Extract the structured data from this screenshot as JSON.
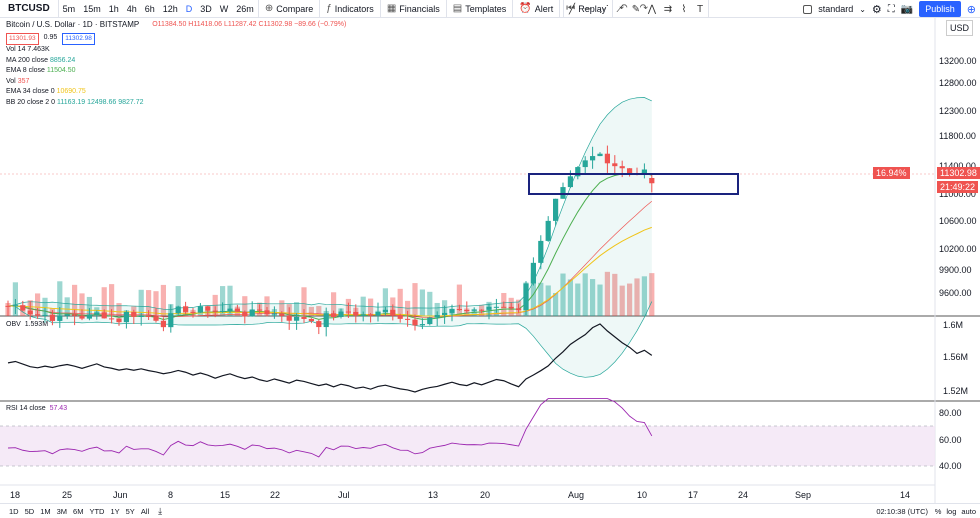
{
  "toolbar": {
    "symbol": "BTCUSD",
    "timeframes": [
      "5m",
      "15m",
      "1h",
      "4h",
      "6h",
      "12h",
      "D",
      "3D",
      "W",
      "26m"
    ],
    "active_timeframe": "D",
    "compare_label": "Compare",
    "indicators_label": "Indicators",
    "financials_label": "Financials",
    "templates_label": "Templates",
    "alert_label": "Alert",
    "replay_label": "Replay",
    "layout_label": "standard",
    "publish_label": "Publish"
  },
  "legend": {
    "title": "Bitcoin / U.S. Dollar · 1D · BITSTAMP",
    "ohlc": "O11384.50 H11418.06 L11287.42 C11302.98 −89.66 (−0.79%)",
    "bid": "11301.93",
    "spread": "0.95",
    "ask": "11302.98",
    "rows": [
      {
        "name": "Vol 14",
        "value": "7.463K",
        "color": "#131722"
      },
      {
        "name": "MA 200 close",
        "value": "8856.24",
        "color": "#26a69a"
      },
      {
        "name": "EMA 8 close",
        "value": "11504.50",
        "color": "#4caf50"
      },
      {
        "name": "Vol",
        "value": "357",
        "color": "#ef5350"
      },
      {
        "name": "EMA 34 close 0",
        "value": "10690.75",
        "color": "#f0c419"
      },
      {
        "name": "BB 20 close 2 0",
        "value": "11163.19  12498.66  9827.72",
        "color": "#26a69a"
      }
    ]
  },
  "price_axis": {
    "currency": "USD",
    "ticks": [
      "13200.00",
      "12800.00",
      "12300.00",
      "11800.00",
      "11400.00",
      "11000.00",
      "10600.00",
      "10200.00",
      "9900.00",
      "9600.00"
    ],
    "last_price": "11302.98",
    "countdown": "21:49:22",
    "pct_label": "16.94%"
  },
  "obv": {
    "label": "OBV",
    "value": "1.593M",
    "ticks": [
      "1.6M",
      "1.56M",
      "1.52M"
    ]
  },
  "rsi": {
    "label": "RSI 14 close",
    "value": "57.43",
    "ticks": [
      "80.00",
      "60.00",
      "40.00"
    ]
  },
  "time_axis": [
    "18",
    "25",
    "Jun",
    "8",
    "15",
    "22",
    "Jul",
    "13",
    "20",
    "Aug",
    "10",
    "17",
    "24",
    "Sep",
    "14"
  ],
  "bottom": {
    "ranges": [
      "1D",
      "5D",
      "1M",
      "3M",
      "6M",
      "YTD",
      "1Y",
      "5Y",
      "All"
    ],
    "clock": "02:10:38 (UTC)",
    "percent": "%",
    "log": "log",
    "auto": "auto"
  },
  "colors": {
    "up": "#26a69a",
    "down": "#ef5350",
    "bb": "#26a69a",
    "ema8": "#4caf50",
    "ema34": "#f0c419",
    "box": "#1a237e",
    "rsi": "#9c27b0",
    "rsi_band": "#f3e5f5"
  }
}
